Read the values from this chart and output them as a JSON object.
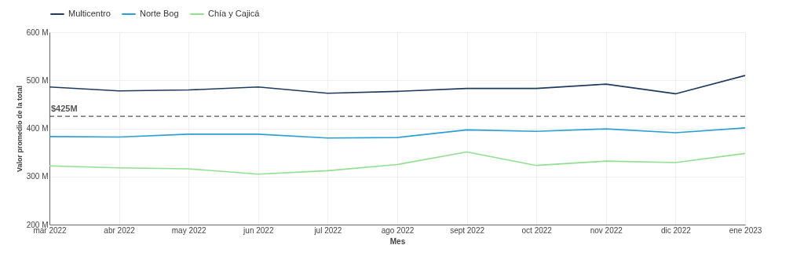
{
  "chart_data": {
    "type": "line",
    "xlabel": "Mes",
    "ylabel": "Valor promedio de la total",
    "categories": [
      "mar 2022",
      "abr 2022",
      "may 2022",
      "jun 2022",
      "jul 2022",
      "ago 2022",
      "sept 2022",
      "oct 2022",
      "nov 2022",
      "dic 2022",
      "ene 2023"
    ],
    "series": [
      {
        "name": "Multicentro",
        "color": "#1f3a5f",
        "values": [
          486,
          478,
          480,
          486,
          473,
          477,
          483,
          483,
          492,
          472,
          510
        ]
      },
      {
        "name": "Norte Bog",
        "color": "#2a9fd6",
        "values": [
          383,
          382,
          388,
          388,
          380,
          381,
          397,
          394,
          399,
          391,
          401
        ]
      },
      {
        "name": "Chía y Cajicá",
        "color": "#90e090",
        "values": [
          322,
          318,
          316,
          305,
          312,
          325,
          351,
          323,
          332,
          329,
          348
        ]
      }
    ],
    "ylim": [
      200,
      600
    ],
    "yticks": [
      {
        "value": 200,
        "label": "200 M"
      },
      {
        "value": 300,
        "label": "300 M"
      },
      {
        "value": 400,
        "label": "400 M"
      },
      {
        "value": 500,
        "label": "500 M"
      },
      {
        "value": 600,
        "label": "600 M"
      }
    ],
    "ref_lines": [
      {
        "axis": "y",
        "value": 425,
        "label": "$425M",
        "color": "#555555",
        "line_style": "dashed"
      }
    ],
    "grid": true,
    "legend": "top left",
    "marker": "none",
    "line_style": "solid"
  }
}
